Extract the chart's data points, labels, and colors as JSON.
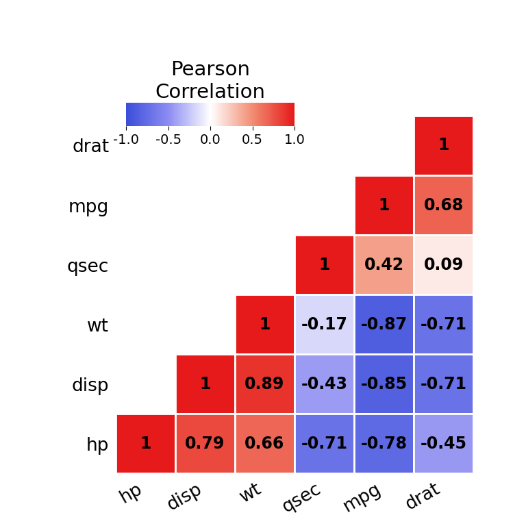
{
  "variables": [
    "hp",
    "disp",
    "wt",
    "qsec",
    "mpg",
    "drat"
  ],
  "corr_matrix": {
    "hp": {
      "hp": 1.0,
      "disp": 0.79,
      "wt": 0.66,
      "qsec": -0.71,
      "mpg": -0.78,
      "drat": -0.45
    },
    "disp": {
      "hp": 0.79,
      "disp": 1.0,
      "wt": 0.89,
      "qsec": -0.43,
      "mpg": -0.85,
      "drat": -0.71
    },
    "wt": {
      "hp": 0.66,
      "disp": 0.89,
      "wt": 1.0,
      "qsec": -0.17,
      "mpg": -0.87,
      "drat": -0.71
    },
    "qsec": {
      "hp": -0.71,
      "disp": -0.43,
      "wt": -0.17,
      "qsec": 1.0,
      "mpg": 0.42,
      "drat": 0.09
    },
    "mpg": {
      "hp": -0.78,
      "disp": -0.85,
      "wt": -0.87,
      "qsec": 0.42,
      "mpg": 1.0,
      "drat": 0.68
    },
    "drat": {
      "hp": -0.45,
      "disp": -0.71,
      "wt": -0.71,
      "qsec": 0.09,
      "mpg": 0.68,
      "drat": 1.0
    }
  },
  "row_labels": [
    "drat",
    "mpg",
    "qsec",
    "wt",
    "disp",
    "hp"
  ],
  "col_labels": [
    "hp",
    "disp",
    "wt",
    "qsec",
    "mpg",
    "drat"
  ],
  "colorbar_title": "Pearson\nCorrelation",
  "colorbar_ticks": [
    -1.0,
    -0.5,
    0.0,
    0.5,
    1.0
  ],
  "colorbar_ticklabels": [
    "-1.0",
    "-0.5",
    "0.0",
    "0.5",
    "1.0"
  ],
  "background_color": "#ffffff",
  "text_fontsize": 17,
  "label_fontsize": 19,
  "title_fontsize": 21,
  "cbar_tick_fontsize": 14,
  "vmin": -1.0,
  "vmax": 1.0
}
